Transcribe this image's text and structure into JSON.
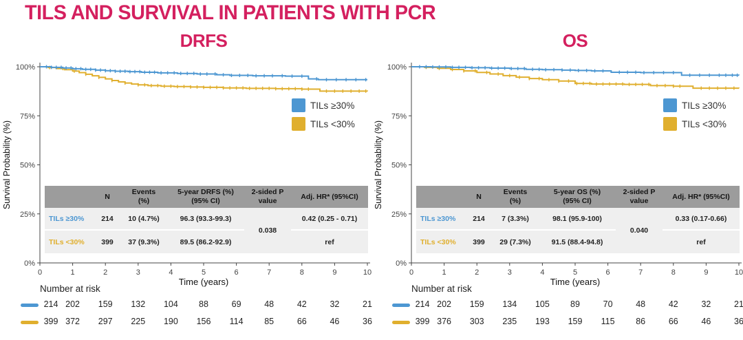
{
  "title": "TILS AND SURVIVAL IN PATIENTS WITH PCR",
  "colors": {
    "accent_pink": "#D4205F",
    "blue": "#4D97D2",
    "yellow": "#E0AF2E",
    "table_header_bg": "#9C9C9C",
    "table_row_bg": "#EFEFEF"
  },
  "chart_data": [
    {
      "type": "line",
      "variant": "kaplan-meier",
      "title": "DRFS",
      "xlabel": "Time (years)",
      "ylabel": "Survival Probability (%)",
      "xlim": [
        0,
        10
      ],
      "ylim": [
        0,
        100
      ],
      "xticks": [
        0,
        1,
        2,
        3,
        4,
        5,
        6,
        7,
        8,
        9,
        10
      ],
      "ytick_values": [
        0,
        25,
        50,
        75,
        100
      ],
      "ytick_labels": [
        "0%",
        "25%",
        "50%",
        "75%",
        "100%"
      ],
      "grid": false,
      "legend_position": "upper-right-inside",
      "series": [
        {
          "name": "TILs ≥30%",
          "color": "#4D97D2",
          "steps": [
            [
              0,
              100
            ],
            [
              0.35,
              99.7
            ],
            [
              0.7,
              99.4
            ],
            [
              1.0,
              99.0
            ],
            [
              1.3,
              98.7
            ],
            [
              1.7,
              98.3
            ],
            [
              2.0,
              98.0
            ],
            [
              2.3,
              97.7
            ],
            [
              2.7,
              97.5
            ],
            [
              3.1,
              97.2
            ],
            [
              3.6,
              96.9
            ],
            [
              4.2,
              96.6
            ],
            [
              4.8,
              96.3
            ],
            [
              5.4,
              95.9
            ],
            [
              5.8,
              95.6
            ],
            [
              6.5,
              95.4
            ],
            [
              7.5,
              95.2
            ],
            [
              8.2,
              93.8
            ],
            [
              8.5,
              93.4
            ],
            [
              10,
              93.4
            ]
          ],
          "censors": [
            0.2,
            0.35,
            0.5,
            0.65,
            0.8,
            0.95,
            1.1,
            1.25,
            1.4,
            1.55,
            1.7,
            1.85,
            2.0,
            2.15,
            2.3,
            2.45,
            2.6,
            2.75,
            2.9,
            3.05,
            3.2,
            3.35,
            3.5,
            3.7,
            3.9,
            4.1,
            4.3,
            4.5,
            4.7,
            4.9,
            5.1,
            5.35,
            5.6,
            5.85,
            6.1,
            6.35,
            6.6,
            6.85,
            7.1,
            7.4,
            7.7,
            8.0,
            8.45,
            8.75,
            9.05,
            9.35,
            9.65,
            9.95
          ]
        },
        {
          "name": "TILs <30%",
          "color": "#E0AF2E",
          "steps": [
            [
              0,
              100
            ],
            [
              0.25,
              99.6
            ],
            [
              0.5,
              99.1
            ],
            [
              0.75,
              98.5
            ],
            [
              1.0,
              97.8
            ],
            [
              1.2,
              97.0
            ],
            [
              1.4,
              96.2
            ],
            [
              1.6,
              95.4
            ],
            [
              1.8,
              94.6
            ],
            [
              2.0,
              93.8
            ],
            [
              2.2,
              93.0
            ],
            [
              2.4,
              92.3
            ],
            [
              2.6,
              91.7
            ],
            [
              2.8,
              91.2
            ],
            [
              3.0,
              90.8
            ],
            [
              3.3,
              90.4
            ],
            [
              3.7,
              90.1
            ],
            [
              4.1,
              89.9
            ],
            [
              4.6,
              89.7
            ],
            [
              5.0,
              89.5
            ],
            [
              5.6,
              89.2
            ],
            [
              6.3,
              89.0
            ],
            [
              7.2,
              88.8
            ],
            [
              8.0,
              88.6
            ],
            [
              8.55,
              87.6
            ],
            [
              10,
              87.5
            ]
          ],
          "censors": [
            0.3,
            0.7,
            1.05,
            1.4,
            1.8,
            2.2,
            2.6,
            3.0,
            3.2,
            3.4,
            3.6,
            3.8,
            4.0,
            4.2,
            4.4,
            4.6,
            4.8,
            5.0,
            5.2,
            5.4,
            5.6,
            5.8,
            6.0,
            6.2,
            6.4,
            6.6,
            6.8,
            7.0,
            7.2,
            7.4,
            7.6,
            7.8,
            8.0,
            8.2,
            8.75,
            9.0,
            9.25,
            9.5,
            9.75,
            9.95
          ]
        }
      ],
      "at_risk": {
        "label": "Number at risk",
        "rows": [
          {
            "series": "TILs ≥30%",
            "color": "#4D97D2",
            "values": [
              214,
              202,
              159,
              132,
              104,
              88,
              69,
              48,
              42,
              32,
              21
            ]
          },
          {
            "series": "TILs <30%",
            "color": "#E0AF2E",
            "values": [
              399,
              372,
              297,
              225,
              190,
              156,
              114,
              85,
              66,
              46,
              36
            ]
          }
        ]
      }
    },
    {
      "type": "line",
      "variant": "kaplan-meier",
      "title": "OS",
      "xlabel": "Time (years)",
      "ylabel": "Survival Probability (%)",
      "xlim": [
        0,
        10
      ],
      "ylim": [
        0,
        100
      ],
      "xticks": [
        0,
        1,
        2,
        3,
        4,
        5,
        6,
        7,
        8,
        9,
        10
      ],
      "ytick_values": [
        0,
        25,
        50,
        75,
        100
      ],
      "ytick_labels": [
        "0%",
        "25%",
        "50%",
        "75%",
        "100%"
      ],
      "grid": false,
      "legend_position": "upper-right-inside",
      "series": [
        {
          "name": "TILs ≥30%",
          "color": "#4D97D2",
          "steps": [
            [
              0,
              100
            ],
            [
              0.6,
              99.9
            ],
            [
              1.2,
              99.7
            ],
            [
              1.8,
              99.5
            ],
            [
              2.4,
              99.3
            ],
            [
              3.0,
              99.1
            ],
            [
              3.5,
              98.7
            ],
            [
              4.0,
              98.5
            ],
            [
              4.6,
              98.3
            ],
            [
              5.0,
              98.1
            ],
            [
              5.5,
              97.9
            ],
            [
              6.1,
              97.2
            ],
            [
              7.0,
              97.0
            ],
            [
              8.25,
              95.7
            ],
            [
              10,
              95.6
            ]
          ],
          "censors": [
            0.25,
            0.45,
            0.65,
            0.85,
            1.05,
            1.25,
            1.45,
            1.65,
            1.85,
            2.05,
            2.25,
            2.45,
            2.65,
            2.85,
            3.05,
            3.25,
            3.45,
            3.7,
            3.9,
            4.1,
            4.35,
            4.6,
            4.85,
            5.1,
            5.35,
            5.6,
            5.85,
            6.35,
            6.6,
            6.85,
            7.1,
            7.4,
            7.7,
            8.0,
            8.5,
            8.8,
            9.1,
            9.4,
            9.6,
            9.8,
            9.95
          ]
        },
        {
          "name": "TILs <30%",
          "color": "#E0AF2E",
          "steps": [
            [
              0,
              100
            ],
            [
              0.4,
              99.7
            ],
            [
              0.8,
              99.2
            ],
            [
              1.2,
              98.6
            ],
            [
              1.6,
              97.9
            ],
            [
              2.0,
              97.1
            ],
            [
              2.4,
              96.3
            ],
            [
              2.8,
              95.5
            ],
            [
              3.2,
              94.7
            ],
            [
              3.6,
              94.0
            ],
            [
              4.0,
              93.4
            ],
            [
              4.5,
              92.7
            ],
            [
              5.0,
              91.5
            ],
            [
              5.5,
              91.2
            ],
            [
              6.5,
              91.0
            ],
            [
              7.3,
              90.4
            ],
            [
              8.0,
              90.1
            ],
            [
              8.6,
              89.1
            ],
            [
              10,
              89.0
            ]
          ],
          "censors": [
            0.45,
            0.85,
            1.25,
            1.6,
            1.95,
            2.3,
            2.65,
            3.0,
            3.3,
            3.6,
            3.9,
            4.2,
            4.5,
            4.8,
            5.05,
            5.25,
            5.45,
            5.65,
            5.85,
            6.05,
            6.25,
            6.45,
            6.65,
            6.85,
            7.05,
            7.25,
            7.5,
            7.75,
            8.0,
            8.2,
            8.85,
            9.1,
            9.35,
            9.6,
            9.85
          ]
        }
      ],
      "at_risk": {
        "label": "Number at risk",
        "rows": [
          {
            "series": "TILs ≥30%",
            "color": "#4D97D2",
            "values": [
              214,
              202,
              159,
              134,
              105,
              89,
              70,
              48,
              42,
              32,
              21
            ]
          },
          {
            "series": "TILs <30%",
            "color": "#E0AF2E",
            "values": [
              399,
              376,
              303,
              235,
              193,
              159,
              115,
              86,
              66,
              46,
              36
            ]
          }
        ]
      }
    }
  ],
  "summary_tables": [
    {
      "headers": {
        "n": "N",
        "events_line1": "Events",
        "events_line2": "(%)",
        "outcome_line1": "5-year DRFS (%)",
        "outcome_line2": "(95% CI)",
        "p_line1": "2-sided P",
        "p_line2": "value",
        "hr": "Adj. HR* (95%CI)"
      },
      "rows": [
        {
          "label": "TILs ≥30%",
          "n": "214",
          "events": "10 (4.7%)",
          "outcome": "96.3 (93.3-99.3)",
          "hr": "0.42 (0.25 - 0.71)"
        },
        {
          "label": "TILs <30%",
          "n": "399",
          "events": "37 (9.3%)",
          "outcome": "89.5 (86.2-92.9)",
          "hr": "ref"
        }
      ],
      "p_value": "0.038"
    },
    {
      "headers": {
        "n": "N",
        "events_line1": "Events",
        "events_line2": "(%)",
        "outcome_line1": "5-year OS (%)",
        "outcome_line2": "(95% CI)",
        "p_line1": "2-sided P",
        "p_line2": "value",
        "hr": "Adj. HR* (95%CI)"
      },
      "rows": [
        {
          "label": "TILs ≥30%",
          "n": "214",
          "events": "7 (3.3%)",
          "outcome": "98.1 (95.9-100)",
          "hr": "0.33 (0.17-0.66)"
        },
        {
          "label": "TILs <30%",
          "n": "399",
          "events": "29 (7.3%)",
          "outcome": "91.5 (88.4-94.8)",
          "hr": "ref"
        }
      ],
      "p_value": "0.040"
    }
  ]
}
